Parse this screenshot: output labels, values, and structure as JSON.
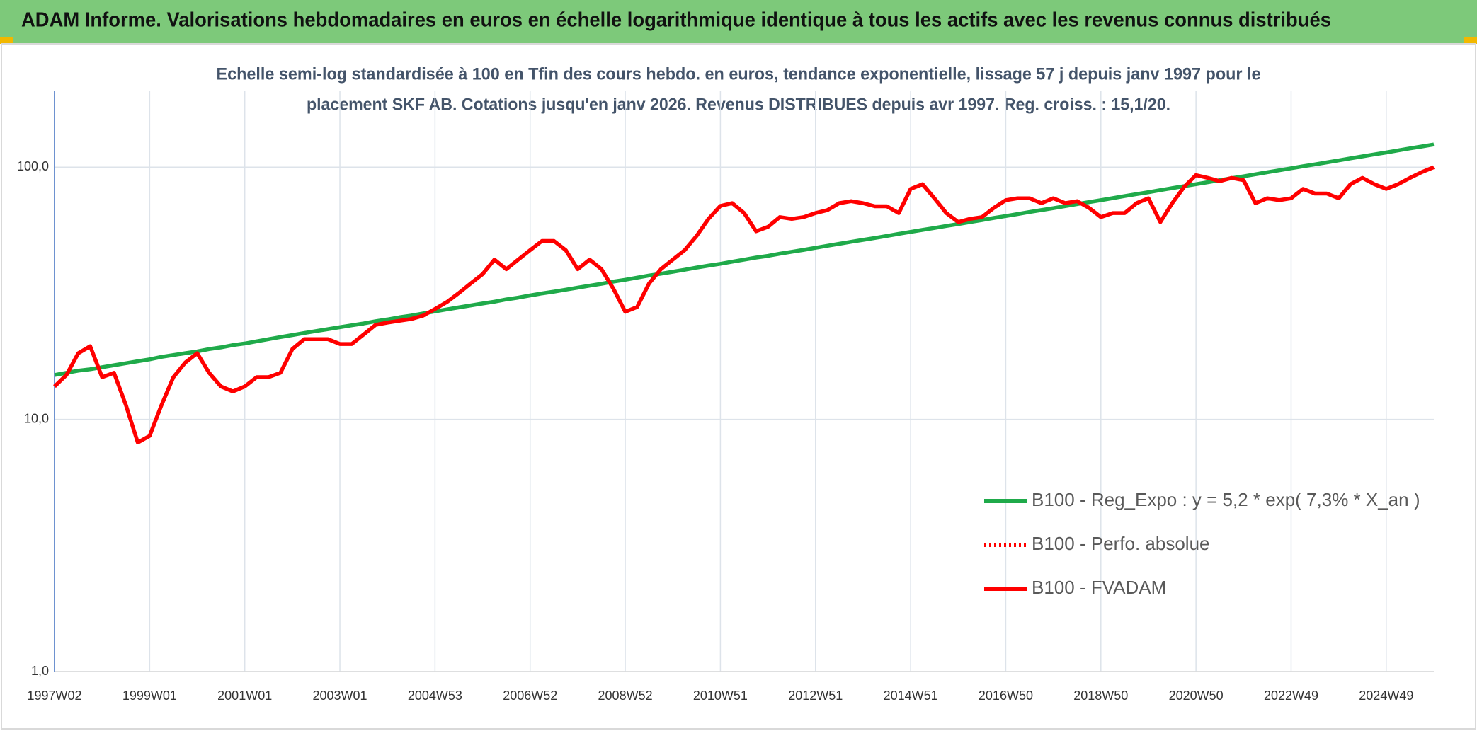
{
  "chart_data": {
    "type": "line",
    "title": "ADAM Informe. Valorisations hebdomadaires en euros en échelle logarithmique identique à tous les actifs avec les revenus connus distribués",
    "subtitle": [
      "Echelle semi-log standardisée à 100 en Tfin des cours hebdo. en euros, tendance exponentielle, lissage 57 j depuis janv 1997 pour le",
      "placement SKF AB. Cotations jusqu'en janv 2026. Revenus DISTRIBUES depuis avr 1997. Reg. croiss. : 15,1/20."
    ],
    "log_scale": true,
    "grid": true,
    "legend": "lower right",
    "ylim": [
      1,
      200
    ],
    "yticks": [
      {
        "value": 1,
        "label": "1,0"
      },
      {
        "value": 10,
        "label": "10,0"
      },
      {
        "value": 100,
        "label": "100,0"
      }
    ],
    "categories": [
      "1997W02",
      null,
      null,
      null,
      null,
      null,
      null,
      null,
      "1999W01",
      null,
      null,
      null,
      null,
      null,
      null,
      null,
      "2001W01",
      null,
      null,
      null,
      null,
      null,
      null,
      null,
      "2003W01",
      null,
      null,
      null,
      null,
      null,
      null,
      null,
      "2004W53",
      null,
      null,
      null,
      null,
      null,
      null,
      null,
      "2006W52",
      null,
      null,
      null,
      null,
      null,
      null,
      null,
      "2008W52",
      null,
      null,
      null,
      null,
      null,
      null,
      null,
      "2010W51",
      null,
      null,
      null,
      null,
      null,
      null,
      null,
      "2012W51",
      null,
      null,
      null,
      null,
      null,
      null,
      null,
      "2014W51",
      null,
      null,
      null,
      null,
      null,
      null,
      null,
      "2016W50",
      null,
      null,
      null,
      null,
      null,
      null,
      null,
      "2018W50",
      null,
      null,
      null,
      null,
      null,
      null,
      null,
      "2020W50",
      null,
      null,
      null,
      null,
      null,
      null,
      null,
      "2022W49",
      null,
      null,
      null,
      null,
      null,
      null,
      null,
      "2024W49",
      null,
      null,
      null,
      null
    ],
    "series": [
      {
        "name": "B100 - Reg_Expo : y = 5,2 * exp( 7,3% *  X_an )",
        "color": "#1faa4a",
        "style": "solid",
        "values": [
          15.0,
          15.3,
          15.6,
          15.8,
          16.1,
          16.4,
          16.7,
          17.0,
          17.3,
          17.7,
          18.0,
          18.3,
          18.6,
          19.0,
          19.3,
          19.7,
          20.0,
          20.4,
          20.8,
          21.2,
          21.6,
          22.0,
          22.4,
          22.8,
          23.2,
          23.6,
          24.0,
          24.5,
          24.9,
          25.4,
          25.8,
          26.3,
          26.8,
          27.3,
          27.8,
          28.3,
          28.8,
          29.3,
          29.9,
          30.4,
          31.0,
          31.6,
          32.1,
          32.7,
          33.3,
          33.9,
          34.5,
          35.2,
          35.8,
          36.5,
          37.2,
          37.8,
          38.5,
          39.2,
          40.0,
          40.7,
          41.4,
          42.2,
          43.0,
          43.8,
          44.5,
          45.4,
          46.2,
          47.0,
          47.9,
          48.8,
          49.7,
          50.6,
          51.5,
          52.4,
          53.4,
          54.4,
          55.4,
          56.4,
          57.4,
          58.5,
          59.5,
          60.6,
          61.7,
          62.9,
          64.0,
          65.2,
          66.4,
          67.6,
          68.8,
          70.1,
          71.4,
          72.7,
          74.0,
          75.4,
          76.8,
          78.2,
          79.6,
          81.1,
          82.6,
          84.1,
          85.6,
          87.2,
          88.8,
          90.4,
          92.0,
          93.7,
          95.5,
          97.2,
          99.0,
          100.8,
          102.6,
          104.5,
          106.4,
          108.4,
          110.4,
          112.4,
          114.4,
          116.5,
          118.7,
          120.8,
          123.0
        ]
      },
      {
        "name": "B100 - Perfo. absolue",
        "color": "#ff0000",
        "style": "dotted",
        "values": [
          null,
          null,
          null,
          null,
          null,
          null,
          null,
          null,
          null,
          null,
          null,
          null,
          null,
          null,
          null,
          null,
          null,
          null,
          null,
          null,
          null,
          null,
          null,
          null,
          null,
          null,
          null,
          null,
          null,
          null,
          null,
          null,
          null,
          null,
          null,
          null,
          null,
          null,
          null,
          null,
          null,
          null,
          null,
          null,
          null,
          null,
          null,
          null,
          null,
          null,
          null,
          null,
          null,
          null,
          null,
          null,
          null,
          null,
          null,
          null,
          null,
          null,
          null,
          null,
          null,
          null,
          null,
          null,
          null,
          null,
          null,
          null,
          null,
          null,
          null,
          null,
          null,
          null,
          null,
          null,
          null,
          null,
          null,
          null,
          null,
          null,
          null,
          null,
          null,
          null,
          null,
          null,
          null,
          null,
          null,
          null,
          null,
          null,
          null,
          null,
          null,
          null,
          null,
          null,
          null,
          null,
          null,
          null,
          null,
          null,
          null,
          null,
          null,
          null,
          null,
          null,
          null
        ]
      },
      {
        "name": "B100 - FVADAM",
        "color": "#ff0000",
        "style": "solid",
        "values": [
          13.5,
          15,
          18.3,
          19.5,
          14.7,
          15.3,
          11.4,
          8.1,
          8.6,
          11.4,
          14.7,
          16.8,
          18.3,
          15.3,
          13.5,
          12.9,
          13.5,
          14.7,
          14.7,
          15.3,
          19,
          20.8,
          20.8,
          20.8,
          19.9,
          19.9,
          21.7,
          23.7,
          24.2,
          24.6,
          25,
          25.8,
          27.4,
          29.2,
          31.7,
          34.6,
          37.7,
          43,
          39.4,
          43,
          46.9,
          51,
          51,
          46.9,
          39.4,
          43,
          39.4,
          33,
          26.7,
          27.9,
          34.6,
          39.4,
          43,
          46.9,
          53.4,
          62.4,
          70.2,
          72,
          65.8,
          55.7,
          58,
          63.4,
          62.4,
          63.4,
          65.8,
          67.6,
          72,
          73.3,
          72,
          70,
          70,
          65.8,
          82,
          85.6,
          75.3,
          65.8,
          60.6,
          62.4,
          63.4,
          69,
          74,
          75.3,
          75.3,
          72,
          75.3,
          72,
          73.3,
          69,
          63.4,
          65.8,
          65.8,
          72,
          75.3,
          60.6,
          72,
          83.5,
          93,
          90.7,
          88,
          90.7,
          88.8,
          72,
          75.3,
          74,
          75.3,
          82,
          78.6,
          78.6,
          75.3,
          85.6,
          90.7,
          85.6,
          82,
          85.6,
          90.7,
          95.6,
          100
        ]
      }
    ]
  }
}
